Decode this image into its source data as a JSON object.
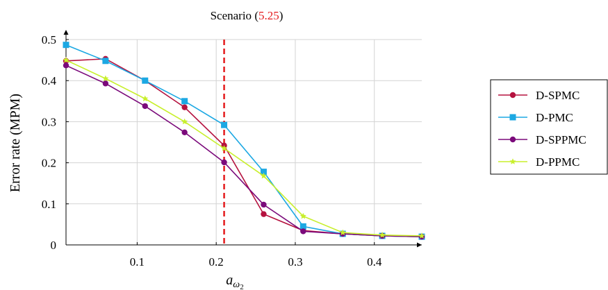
{
  "chart_data": {
    "type": "line",
    "title": "Scenario ",
    "title_ref": "5.25",
    "title_close": ")",
    "title_open": "(",
    "xlabel_base": "a",
    "xlabel_sub": "ω",
    "xlabel_subsub": "2",
    "ylabel": "Error rate (MPM)",
    "xlim": [
      0.01,
      0.46
    ],
    "ylim": [
      0,
      0.5
    ],
    "xticks": [
      0.1,
      0.2,
      0.3,
      0.4
    ],
    "xtick_labels": [
      "0.1",
      "0.2",
      "0.3",
      "0.4"
    ],
    "yticks": [
      0,
      0.1,
      0.2,
      0.3,
      0.4,
      0.5
    ],
    "ytick_labels": [
      "0",
      "0.1",
      "0.2",
      "0.3",
      "0.4",
      "0.5"
    ],
    "grid": true,
    "legend_position": "right",
    "vline": {
      "x": 0.21,
      "color": "#e41a1c",
      "style": "dashed"
    },
    "x": [
      0.01,
      0.06,
      0.11,
      0.16,
      0.21,
      0.26,
      0.31,
      0.36,
      0.41,
      0.46
    ],
    "series": [
      {
        "name": "D-SPMC",
        "color": "#b5123f",
        "marker": "circle",
        "values": [
          0.448,
          0.453,
          0.4,
          0.335,
          0.242,
          0.075,
          0.035,
          0.027,
          0.022,
          0.02
        ]
      },
      {
        "name": "D-PMC",
        "color": "#1ca8e3",
        "marker": "square",
        "values": [
          0.487,
          0.448,
          0.4,
          0.35,
          0.292,
          0.178,
          0.045,
          0.027,
          0.022,
          0.02
        ]
      },
      {
        "name": "D-SPPMC",
        "color": "#7b0a7b",
        "marker": "circle",
        "values": [
          0.437,
          0.393,
          0.338,
          0.274,
          0.201,
          0.098,
          0.033,
          0.027,
          0.022,
          0.02
        ]
      },
      {
        "name": "D-PPMC",
        "color": "#c8ef2c",
        "marker": "star",
        "values": [
          0.45,
          0.405,
          0.356,
          0.3,
          0.235,
          0.168,
          0.07,
          0.03,
          0.024,
          0.022
        ]
      }
    ]
  }
}
